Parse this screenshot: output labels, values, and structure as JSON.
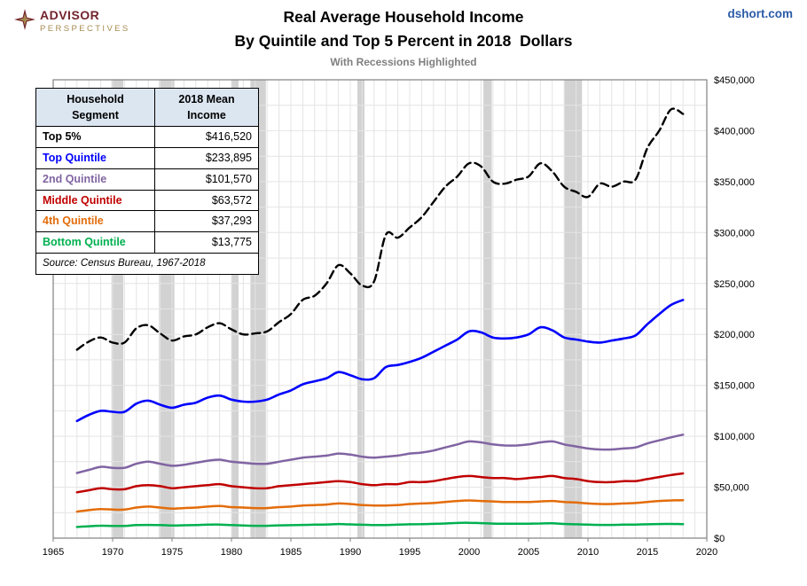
{
  "header": {
    "logo_line1": "ADVISOR",
    "logo_line2": "PERSPECTIVES",
    "site": "dshort.com",
    "title_line1": "Real Average Household Income",
    "title_line2": "By Quintile and Top 5 Percent in 2018  Dollars",
    "subtitle": "With Recessions Highlighted"
  },
  "legend_table": {
    "header_col1": [
      "Household",
      "Segment"
    ],
    "header_col2": [
      "2018 Mean",
      "Income"
    ],
    "rows": [
      {
        "label": "Top 5%",
        "value": "$416,520",
        "color": "#000000"
      },
      {
        "label": "Top Quintile",
        "value": "$233,895",
        "color": "#0000FF"
      },
      {
        "label": "2nd Quintile",
        "value": "$101,570",
        "color": "#8064A2"
      },
      {
        "label": "Middle Quintile",
        "value": "$63,572",
        "color": "#C00000"
      },
      {
        "label": "4th Quintile",
        "value": "$37,293",
        "color": "#E36C0A"
      },
      {
        "label": "Bottom Quintile",
        "value": "$13,775",
        "color": "#00B050"
      }
    ],
    "source": "Source: Census Bureau, 1967-2018"
  },
  "chart_data": {
    "type": "line",
    "title": "Real Average Household Income By Quintile and Top 5 Percent in 2018 Dollars",
    "subtitle": "With Recessions Highlighted",
    "xlabel": "",
    "ylabel": "",
    "xlim": [
      1965,
      2020
    ],
    "ylim": [
      0,
      450000
    ],
    "grid": {
      "x_step_years": 1,
      "y_step_dollars": 25000
    },
    "x_ticks": [
      1965,
      1970,
      1975,
      1980,
      1985,
      1990,
      1995,
      2000,
      2005,
      2010,
      2015,
      2020
    ],
    "y_ticks": [
      {
        "value": 0,
        "label": "$0"
      },
      {
        "value": 50000,
        "label": "$50,000"
      },
      {
        "value": 100000,
        "label": "$100,000"
      },
      {
        "value": 150000,
        "label": "$150,000"
      },
      {
        "value": 200000,
        "label": "$200,000"
      },
      {
        "value": 250000,
        "label": "$250,000"
      },
      {
        "value": 300000,
        "label": "$300,000"
      },
      {
        "value": 350000,
        "label": "$350,000"
      },
      {
        "value": 400000,
        "label": "$400,000"
      },
      {
        "value": 450000,
        "label": "$450,000"
      }
    ],
    "recessions": [
      [
        1969.9,
        1970.9
      ],
      [
        1973.9,
        1975.2
      ],
      [
        1980.0,
        1980.6
      ],
      [
        1981.6,
        1982.9
      ],
      [
        1990.6,
        1991.2
      ],
      [
        2001.2,
        2001.9
      ],
      [
        2008.0,
        2009.5
      ]
    ],
    "colors": {
      "grid": "#E4E4E4",
      "recession": "#D2D2D2",
      "axis": "#808080"
    },
    "x": [
      1967,
      1968,
      1969,
      1970,
      1971,
      1972,
      1973,
      1974,
      1975,
      1976,
      1977,
      1978,
      1979,
      1980,
      1981,
      1982,
      1983,
      1984,
      1985,
      1986,
      1987,
      1988,
      1989,
      1990,
      1991,
      1992,
      1993,
      1994,
      1995,
      1996,
      1997,
      1998,
      1999,
      2000,
      2001,
      2002,
      2003,
      2004,
      2005,
      2006,
      2007,
      2008,
      2009,
      2010,
      2011,
      2012,
      2013,
      2014,
      2015,
      2016,
      2017,
      2018
    ],
    "series": [
      {
        "name": "Top 5%",
        "color": "#000000",
        "dash": "9 5",
        "width": 2.4,
        "values": [
          185000,
          193000,
          197000,
          192000,
          192000,
          206000,
          209000,
          201000,
          194000,
          198000,
          200000,
          207000,
          211000,
          205000,
          200000,
          201000,
          203000,
          212000,
          220000,
          234000,
          238000,
          250000,
          268000,
          260000,
          248000,
          252000,
          298000,
          295000,
          305000,
          315000,
          330000,
          345000,
          355000,
          368000,
          365000,
          350000,
          348000,
          352000,
          355000,
          368000,
          360000,
          345000,
          340000,
          335000,
          348000,
          345000,
          350000,
          352000,
          383000,
          400000,
          421000,
          416520
        ]
      },
      {
        "name": "Top Quintile",
        "color": "#0000FF",
        "width": 2.6,
        "values": [
          115000,
          121000,
          125000,
          124000,
          124000,
          132000,
          135000,
          131000,
          128000,
          131000,
          133000,
          138000,
          140000,
          136000,
          134000,
          134000,
          136000,
          141000,
          145000,
          151000,
          154000,
          157000,
          163000,
          160000,
          156000,
          157000,
          168000,
          170000,
          173000,
          177000,
          183000,
          189000,
          195000,
          203000,
          202000,
          197000,
          196000,
          197000,
          200000,
          207000,
          204000,
          197000,
          195000,
          193000,
          192000,
          194000,
          196000,
          199000,
          210000,
          220000,
          229000,
          233895
        ]
      },
      {
        "name": "2nd Quintile",
        "color": "#8064A2",
        "width": 2.5,
        "values": [
          64000,
          67000,
          70000,
          69000,
          69000,
          73000,
          75000,
          73000,
          71000,
          72000,
          74000,
          76000,
          77000,
          75000,
          74000,
          73000,
          73000,
          75000,
          77000,
          79000,
          80000,
          81000,
          83000,
          82000,
          80000,
          79000,
          80000,
          81000,
          83000,
          84000,
          86000,
          89000,
          92000,
          95000,
          94000,
          92000,
          91000,
          91000,
          92000,
          94000,
          95000,
          92000,
          90000,
          88000,
          87000,
          87000,
          88000,
          89000,
          93000,
          96000,
          99000,
          101570
        ]
      },
      {
        "name": "Middle Quintile",
        "color": "#C00000",
        "width": 2.5,
        "values": [
          45000,
          47000,
          49000,
          48000,
          48000,
          51000,
          52000,
          51000,
          49000,
          50000,
          51000,
          52000,
          53000,
          51000,
          50000,
          49000,
          49000,
          51000,
          52000,
          53000,
          54000,
          55000,
          56000,
          55000,
          53000,
          52000,
          53000,
          53000,
          55000,
          55000,
          56000,
          58000,
          60000,
          61000,
          60000,
          59000,
          59000,
          58000,
          59000,
          60000,
          61000,
          59000,
          58000,
          56000,
          55000,
          55000,
          56000,
          56000,
          58000,
          60000,
          62000,
          63572
        ]
      },
      {
        "name": "4th Quintile",
        "color": "#E36C0A",
        "width": 2.5,
        "values": [
          26000,
          27500,
          28500,
          28000,
          28000,
          30000,
          31000,
          30000,
          29000,
          29500,
          30000,
          31000,
          31500,
          30500,
          30000,
          29500,
          29500,
          30500,
          31000,
          32000,
          32500,
          33000,
          34000,
          33500,
          32500,
          32000,
          32000,
          32500,
          33500,
          34000,
          34500,
          35500,
          36500,
          37000,
          36500,
          36000,
          35500,
          35500,
          35500,
          36000,
          36500,
          35500,
          35000,
          34000,
          33500,
          33500,
          34000,
          34500,
          35500,
          36500,
          37000,
          37293
        ]
      },
      {
        "name": "Bottom Quintile",
        "color": "#00B050",
        "width": 2.5,
        "values": [
          11000,
          11700,
          12200,
          12000,
          12000,
          12800,
          13000,
          12800,
          12400,
          12600,
          12800,
          13200,
          13300,
          12800,
          12400,
          12100,
          12100,
          12500,
          12700,
          13000,
          13200,
          13400,
          13800,
          13500,
          13100,
          12800,
          12900,
          13200,
          13600,
          13700,
          14000,
          14400,
          14900,
          15100,
          14700,
          14300,
          14100,
          14100,
          14200,
          14400,
          14500,
          13900,
          13600,
          13200,
          13000,
          13000,
          13200,
          13300,
          13600,
          13800,
          13900,
          13775
        ]
      }
    ]
  }
}
